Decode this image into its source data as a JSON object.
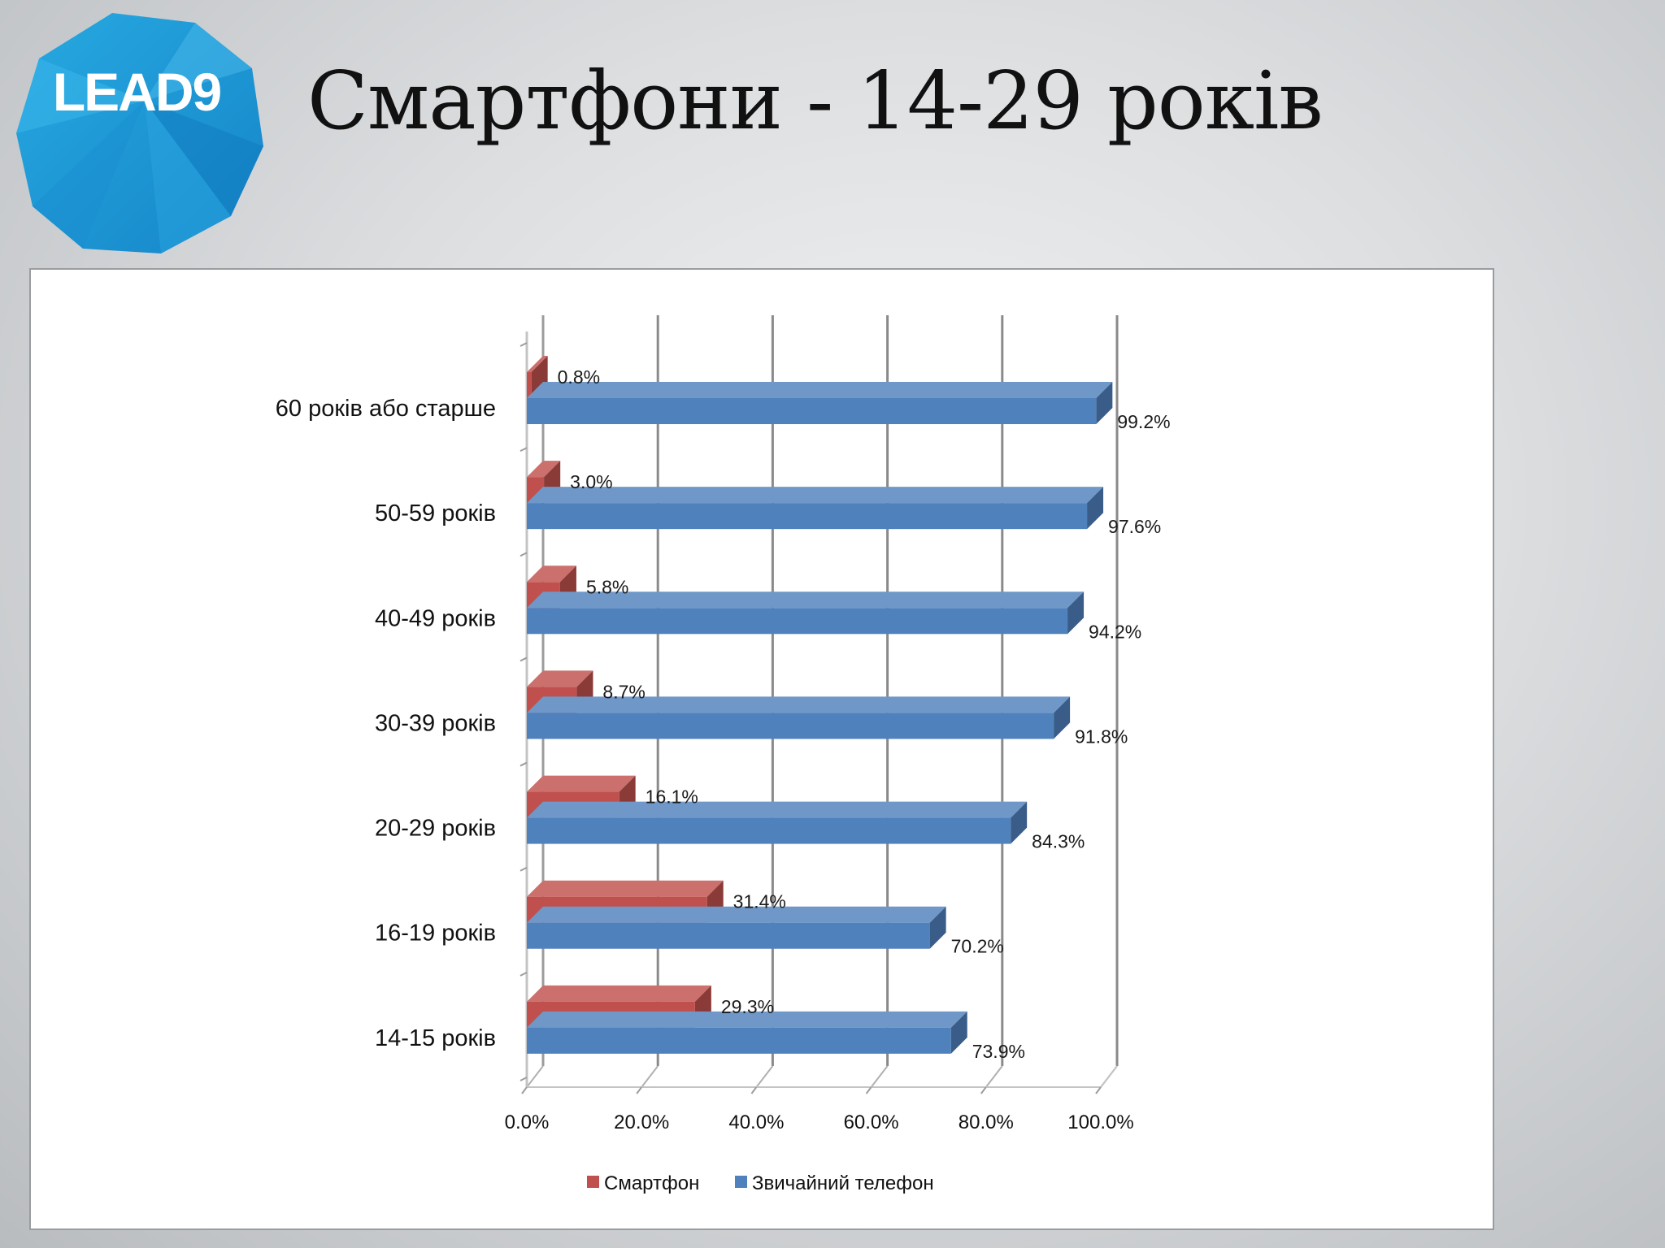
{
  "header": {
    "title": "Смартфони - 14-29 років",
    "logo_text": "LEAD9"
  },
  "colors": {
    "smartphone": "#c0504d",
    "regular_phone": "#4f81bd",
    "logo_blue": "#1e9fdc"
  },
  "chart_data": {
    "type": "bar",
    "orientation": "horizontal",
    "style": "3d-clustered",
    "categories": [
      "60 років або старше",
      "50-59 років",
      "40-49 років",
      "30-39 років",
      "20-29 років",
      "16-19 років",
      "14-15 років"
    ],
    "series": [
      {
        "name": "Смартфон",
        "values": [
          0.8,
          3.0,
          5.8,
          8.7,
          16.1,
          31.4,
          29.3
        ],
        "labels": [
          "0.8%",
          "3.0%",
          "5.8%",
          "8.7%",
          "16.1%",
          "31.4%",
          "29.3%"
        ]
      },
      {
        "name": "Звичайний телефон",
        "values": [
          99.2,
          97.6,
          94.2,
          91.8,
          84.3,
          70.2,
          73.9
        ],
        "labels": [
          "99.2%",
          "97.6%",
          "94.2%",
          "91.8%",
          "84.3%",
          "70.2%",
          "73.9%"
        ]
      }
    ],
    "xlim": [
      0,
      100
    ],
    "x_ticks": [
      "0.0%",
      "20.0%",
      "40.0%",
      "60.0%",
      "80.0%",
      "100.0%"
    ],
    "grid": true,
    "legend_position": "bottom"
  }
}
